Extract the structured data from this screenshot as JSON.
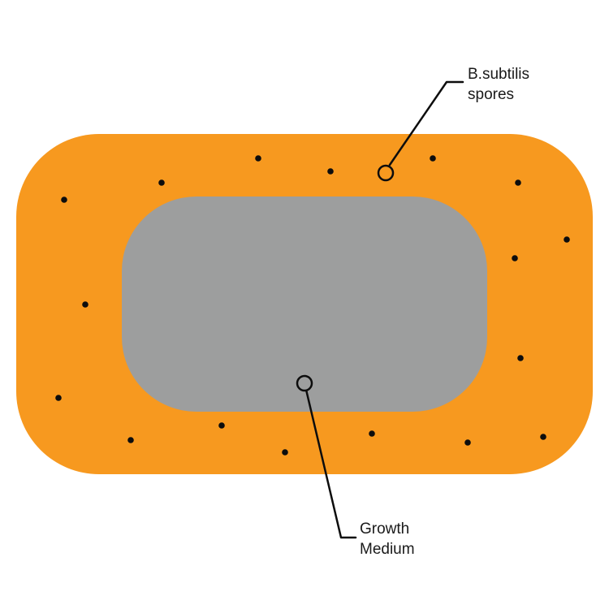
{
  "diagram": {
    "colors": {
      "outer_layer": "#f7991f",
      "growth_medium": "#9d9e9e",
      "spore": "#0d0d0d",
      "leader_line": "#0d0d0d",
      "background": "#ffffff"
    },
    "labels": {
      "spores": {
        "line1": "B.subtilis",
        "line2": "spores"
      },
      "medium": {
        "line1": "Growth",
        "line2": "Medium"
      }
    }
  }
}
